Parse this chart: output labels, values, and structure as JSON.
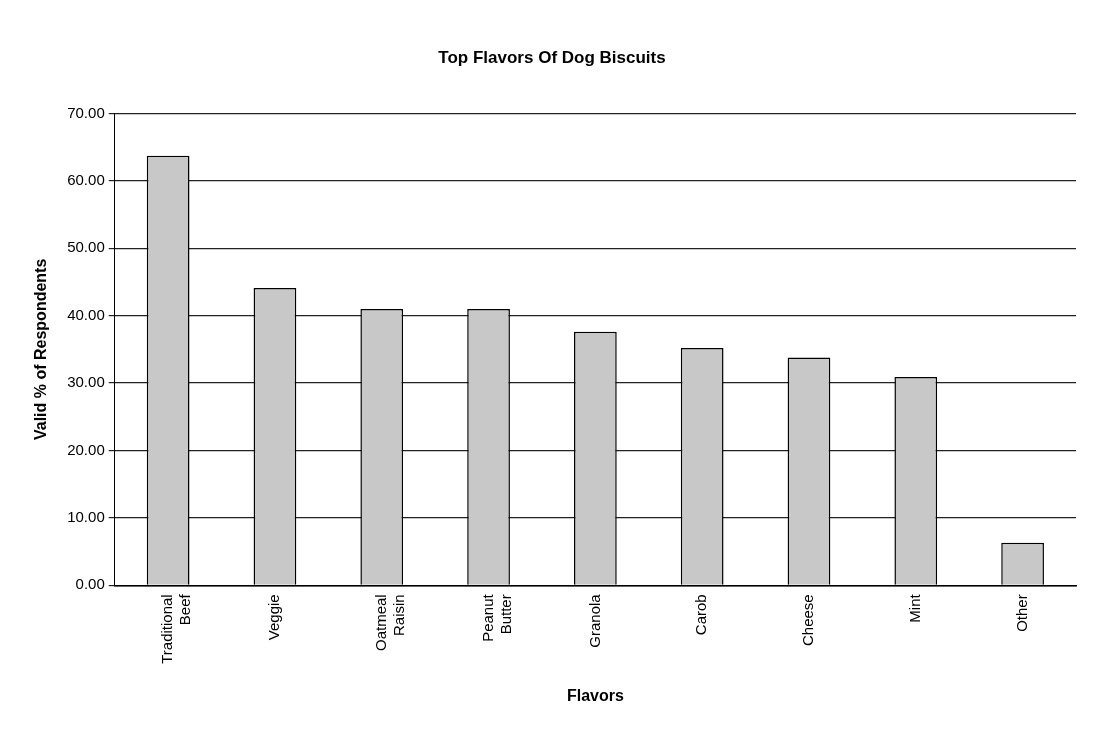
{
  "chart_data": {
    "type": "bar",
    "title": "Top Flavors Of Dog Biscuits",
    "xlabel": "Flavors",
    "ylabel": "Valid % of Respondents",
    "categories": [
      "Traditional Beef",
      "Veggie",
      "Oatmeal Raisin",
      "Peanut Butter",
      "Granola",
      "Carob",
      "Cheese",
      "Mint",
      "Other"
    ],
    "values": [
      63.7,
      44.1,
      41.0,
      41.0,
      37.6,
      35.2,
      33.8,
      30.9,
      6.3
    ],
    "color": "#c8c8c8",
    "ylim": [
      0,
      70
    ],
    "yticks": [
      {
        "value": 0,
        "label": "0.00"
      },
      {
        "value": 10,
        "label": "10.00"
      },
      {
        "value": 20,
        "label": "20.00"
      },
      {
        "value": 30,
        "label": "30.00"
      },
      {
        "value": 40,
        "label": "40.00"
      },
      {
        "value": 50,
        "label": "50.00"
      },
      {
        "value": 60,
        "label": "60.00"
      },
      {
        "value": 70,
        "label": "70.00"
      }
    ],
    "grid": "y",
    "legend": false
  }
}
